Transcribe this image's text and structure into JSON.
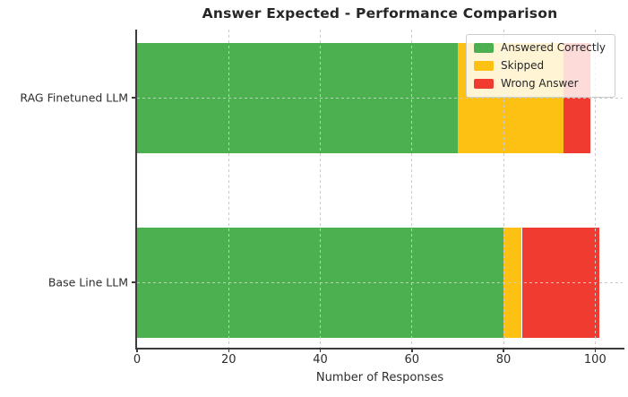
{
  "title": "Answer Expected - Performance Comparison",
  "chart_data": {
    "type": "bar",
    "orientation": "horizontal",
    "stacked": true,
    "title": "Answer Expected - Performance Comparison",
    "categories": [
      "RAG Finetuned LLM",
      "Base Line LLM"
    ],
    "series": [
      {
        "name": "Answered Correctly",
        "color": "#4CAF50",
        "values": [
          70,
          80
        ]
      },
      {
        "name": "Skipped",
        "color": "#FDC113",
        "values": [
          23,
          4
        ]
      },
      {
        "name": "Wrong Answer",
        "color": "#F03B30",
        "values": [
          6,
          17
        ]
      }
    ],
    "totals": [
      99,
      101
    ],
    "xlabel": "Number of Responses",
    "ylabel": "",
    "xticks": [
      0,
      20,
      40,
      60,
      80,
      100
    ],
    "xlim": [
      0,
      106
    ],
    "grid": "dashed-over-bars",
    "legend_position": "upper right",
    "legend_entries": [
      "Answered Correctly",
      "Skipped",
      "Wrong Answer"
    ]
  },
  "colors": {
    "background": "#ffffff",
    "text": "#262626",
    "spine": "#3c3c3c",
    "gridline": "#c9c9c9",
    "legend_border": "#cccccc"
  }
}
